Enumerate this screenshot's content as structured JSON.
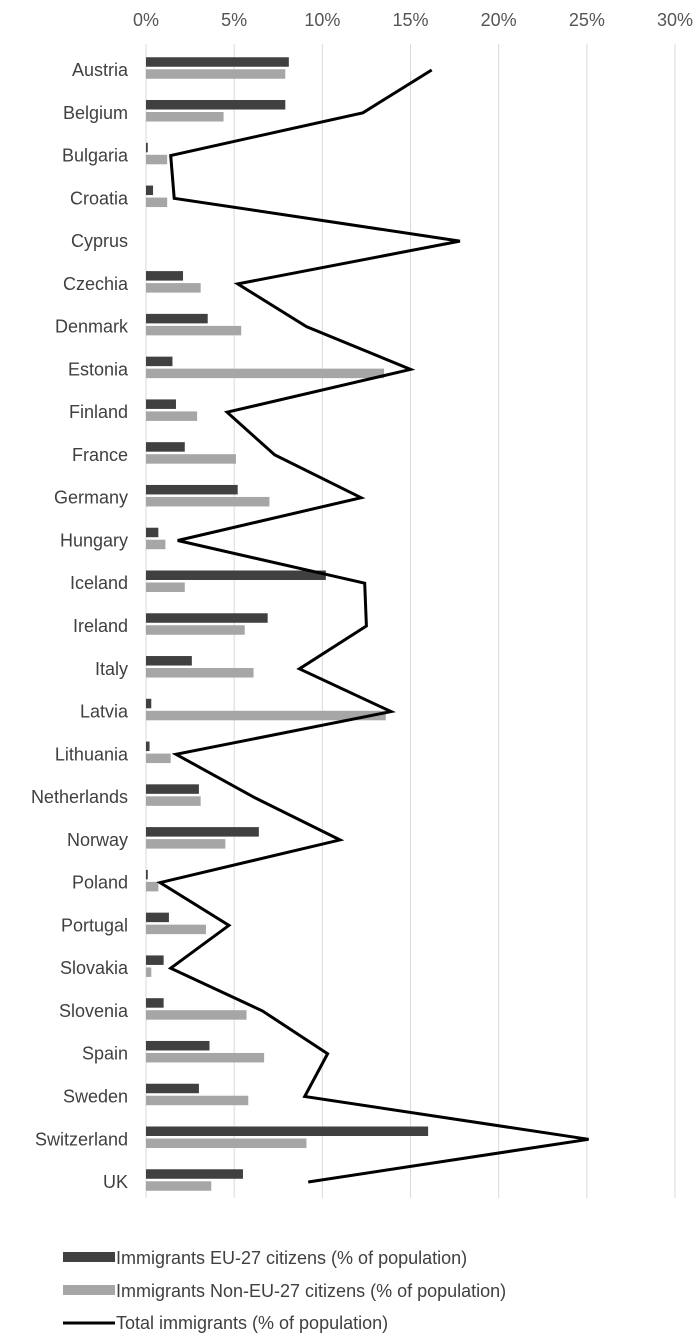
{
  "chart_data": {
    "type": "bar",
    "orientation": "horizontal",
    "title": "",
    "xlabel": "",
    "ylabel": "",
    "xlim": [
      0,
      30
    ],
    "x_ticks": [
      "0%",
      "5%",
      "10%",
      "15%",
      "20%",
      "25%",
      "30%"
    ],
    "x_tick_values": [
      0,
      5,
      10,
      15,
      20,
      25,
      30
    ],
    "grid": "vertical",
    "legend_position": "bottom",
    "categories": [
      "Austria",
      "Belgium",
      "Bulgaria",
      "Croatia",
      "Cyprus",
      "Czechia",
      "Denmark",
      "Estonia",
      "Finland",
      "France",
      "Germany",
      "Hungary",
      "Iceland",
      "Ireland",
      "Italy",
      "Latvia",
      "Lithuania",
      "Netherlands",
      "Norway",
      "Poland",
      "Portugal",
      "Slovakia",
      "Slovenia",
      "Spain",
      "Sweden",
      "Switzerland",
      "UK"
    ],
    "series": [
      {
        "name": "Immigrants EU-27 citizens (% of population)",
        "type": "bar",
        "color": "#404040",
        "values": [
          8.1,
          7.9,
          0.1,
          0.4,
          0,
          2.1,
          3.5,
          1.5,
          1.7,
          2.2,
          5.2,
          0.7,
          10.2,
          6.9,
          2.6,
          0.3,
          0.2,
          3.0,
          6.4,
          0.1,
          1.3,
          1.0,
          1.0,
          3.6,
          3.0,
          16.0,
          5.5
        ]
      },
      {
        "name": "Immigrants Non-EU-27 citizens (% of population)",
        "type": "bar",
        "color": "#a6a6a6",
        "values": [
          7.9,
          4.4,
          1.2,
          1.2,
          0,
          3.1,
          5.4,
          13.5,
          2.9,
          5.1,
          7.0,
          1.1,
          2.2,
          5.6,
          6.1,
          13.6,
          1.4,
          3.1,
          4.5,
          0.7,
          3.4,
          0.3,
          5.7,
          6.7,
          5.8,
          9.1,
          3.7
        ]
      },
      {
        "name": "Total immigrants (% of population)",
        "type": "line",
        "color": "#000000",
        "values": [
          16.2,
          12.3,
          1.4,
          1.6,
          17.8,
          5.2,
          9.1,
          15.0,
          4.6,
          7.3,
          12.2,
          1.8,
          12.4,
          12.5,
          8.7,
          13.9,
          1.7,
          6.1,
          11.0,
          0.8,
          4.7,
          1.4,
          6.6,
          10.3,
          9.0,
          25.1,
          9.2
        ]
      }
    ]
  },
  "colors": {
    "grid": "#d9d9d9",
    "axis": "#d9d9d9",
    "text": "#404040"
  }
}
